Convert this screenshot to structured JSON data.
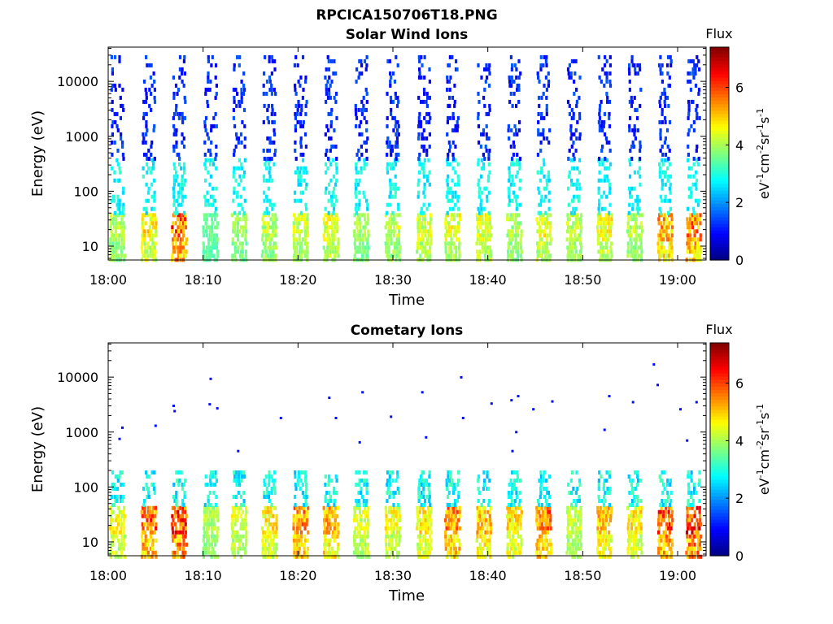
{
  "figure": {
    "title": "RPCICA150706T18.PNG"
  },
  "chart_data": [
    {
      "type": "heatmap",
      "title": "Solar Wind Ions",
      "xlabel": "Time",
      "ylabel": "Energy (eV)",
      "x_ticks": [
        "18:00",
        "18:10",
        "18:20",
        "18:30",
        "18:40",
        "18:50",
        "19:00"
      ],
      "x_range": [
        "18:00",
        "19:03"
      ],
      "y_ticks": [
        "10",
        "100",
        "1000",
        "10000"
      ],
      "y_range": [
        5.6,
        42000
      ],
      "y_scale": "log",
      "colorbar": {
        "title": "Flux",
        "label": "eV-1cm-2sr-1s-1",
        "ticks": [
          "0",
          "2",
          "4",
          "6"
        ],
        "range": [
          0,
          7.4
        ],
        "colormap": "jet"
      },
      "scan_minutes": [
        1.0,
        4.3,
        7.5,
        10.8,
        13.8,
        17.0,
        20.3,
        23.5,
        26.7,
        30.0,
        33.3,
        36.3,
        39.6,
        42.8,
        45.9,
        49.1,
        52.3,
        55.5,
        58.7,
        61.7
      ],
      "scan_peak_flux": [
        4.4,
        5.3,
        6.8,
        3.8,
        4.2,
        4.6,
        4.7,
        4.9,
        4.3,
        4.6,
        4.8,
        5.0,
        4.9,
        4.4,
        5.0,
        4.6,
        5.1,
        4.5,
        5.9,
        6.6
      ],
      "bands": [
        {
          "energy_range": [
            5.6,
            40
          ],
          "flux_range": [
            2.8,
            7.0
          ]
        },
        {
          "energy_range": [
            40,
            400
          ],
          "flux_range": [
            2.4,
            3.2
          ]
        },
        {
          "energy_range": [
            400,
            30000
          ],
          "flux_range": [
            0.8,
            1.6
          ]
        }
      ]
    },
    {
      "type": "heatmap",
      "title": "Cometary Ions",
      "xlabel": "Time",
      "ylabel": "Energy (eV)",
      "x_ticks": [
        "18:00",
        "18:10",
        "18:20",
        "18:30",
        "18:40",
        "18:50",
        "19:00"
      ],
      "x_range": [
        "18:00",
        "19:03"
      ],
      "y_ticks": [
        "10",
        "100",
        "1000",
        "10000"
      ],
      "y_range": [
        5.6,
        42000
      ],
      "y_scale": "log",
      "colorbar": {
        "title": "Flux",
        "label": "eV-1cm-2sr-1s-1",
        "ticks": [
          "0",
          "2",
          "4",
          "6"
        ],
        "range": [
          0,
          7.4
        ],
        "colormap": "jet"
      },
      "scan_minutes": [
        1.0,
        4.3,
        7.5,
        10.8,
        13.8,
        17.0,
        20.3,
        23.5,
        26.7,
        30.0,
        33.3,
        36.3,
        39.6,
        42.8,
        45.9,
        49.1,
        52.3,
        55.5,
        58.7,
        61.7
      ],
      "scan_peak_flux": [
        5.0,
        6.6,
        7.0,
        4.4,
        4.8,
        5.2,
        6.2,
        5.8,
        4.8,
        5.0,
        5.2,
        6.2,
        5.6,
        5.4,
        6.4,
        4.6,
        5.6,
        5.2,
        6.8,
        7.0
      ],
      "bands": [
        {
          "energy_range": [
            5.6,
            45
          ],
          "flux_range": [
            3.0,
            7.2
          ]
        },
        {
          "energy_range": [
            45,
            200
          ],
          "flux_range": [
            2.2,
            3.4
          ]
        }
      ],
      "sparse_points": [
        {
          "minute": 1.5,
          "energy": 1200
        },
        {
          "minute": 1.2,
          "energy": 750
        },
        {
          "minute": 5.0,
          "energy": 1300
        },
        {
          "minute": 6.9,
          "energy": 3000
        },
        {
          "minute": 7.0,
          "energy": 2400
        },
        {
          "minute": 10.8,
          "energy": 9300
        },
        {
          "minute": 10.7,
          "energy": 3200
        },
        {
          "minute": 11.5,
          "energy": 2700
        },
        {
          "minute": 13.7,
          "energy": 450
        },
        {
          "minute": 18.2,
          "energy": 1800
        },
        {
          "minute": 23.3,
          "energy": 4200
        },
        {
          "minute": 24.0,
          "energy": 1800
        },
        {
          "minute": 26.5,
          "energy": 650
        },
        {
          "minute": 26.8,
          "energy": 5300
        },
        {
          "minute": 29.8,
          "energy": 1900
        },
        {
          "minute": 33.1,
          "energy": 5300
        },
        {
          "minute": 33.5,
          "energy": 800
        },
        {
          "minute": 37.2,
          "energy": 9900
        },
        {
          "minute": 37.4,
          "energy": 1800
        },
        {
          "minute": 40.4,
          "energy": 3300
        },
        {
          "minute": 42.5,
          "energy": 3800
        },
        {
          "minute": 43.2,
          "energy": 4500
        },
        {
          "minute": 43.0,
          "energy": 1000
        },
        {
          "minute": 42.6,
          "energy": 450
        },
        {
          "minute": 44.8,
          "energy": 2600
        },
        {
          "minute": 46.8,
          "energy": 3600
        },
        {
          "minute": 52.8,
          "energy": 4500
        },
        {
          "minute": 52.3,
          "energy": 1100
        },
        {
          "minute": 55.3,
          "energy": 3500
        },
        {
          "minute": 57.5,
          "energy": 17000
        },
        {
          "minute": 57.9,
          "energy": 7200
        },
        {
          "minute": 60.3,
          "energy": 2600
        },
        {
          "minute": 61.0,
          "energy": 700
        },
        {
          "minute": 62.0,
          "energy": 3500
        }
      ]
    }
  ]
}
